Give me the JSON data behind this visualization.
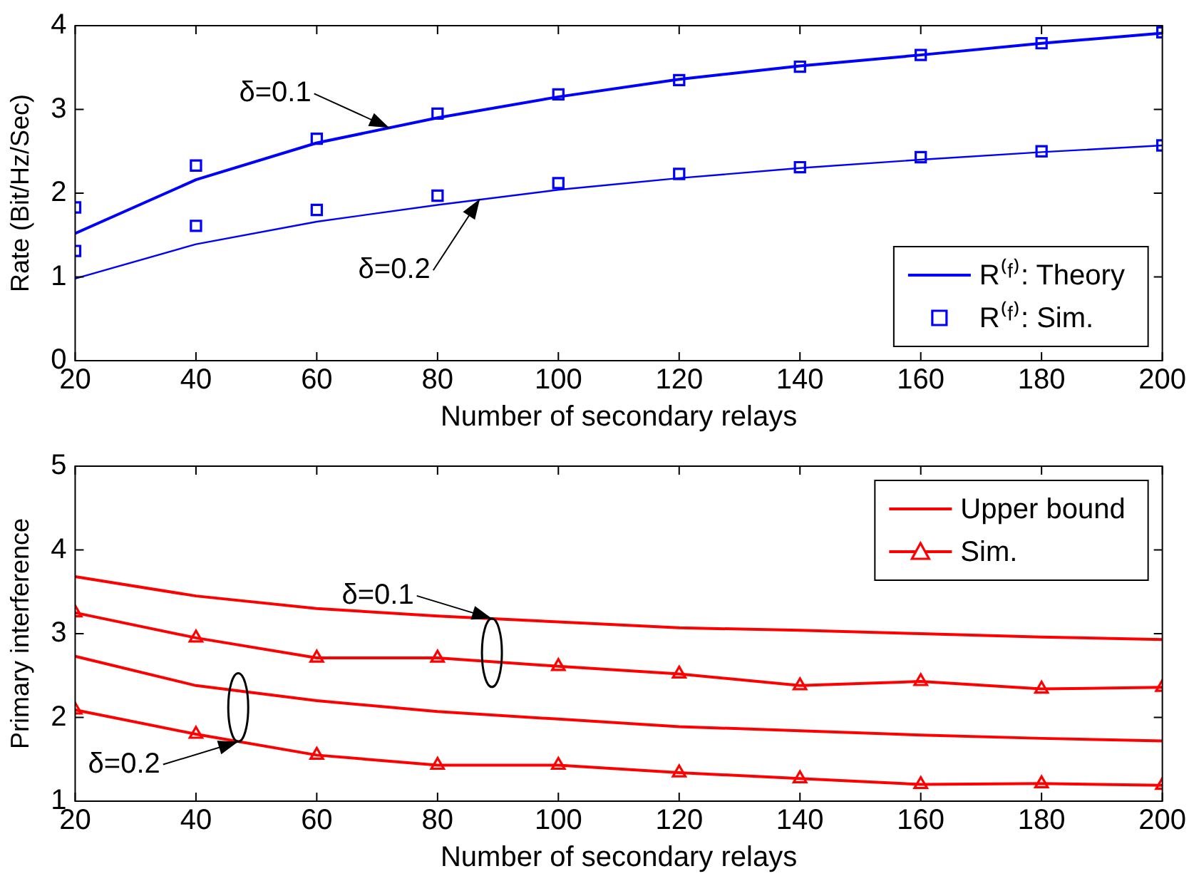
{
  "chart_data": [
    {
      "type": "line",
      "xlabel": "Number of secondary relays",
      "ylabel": "Rate (Bit/Hz/Sec)",
      "x": [
        20,
        40,
        60,
        80,
        100,
        120,
        140,
        160,
        180,
        200
      ],
      "xlim": [
        20,
        200
      ],
      "xticks": [
        20,
        40,
        60,
        80,
        100,
        120,
        140,
        160,
        180,
        200
      ],
      "ylim": [
        0,
        4
      ],
      "yticks": [
        0,
        1,
        2,
        3,
        4
      ],
      "grid": false,
      "legend": "bottom right",
      "series": [
        {
          "name": "R⁽ᶠ⁾: Theory",
          "type": "line",
          "color": "#0000ff",
          "marker": "none",
          "values": [
            1.52,
            2.16,
            2.6,
            2.9,
            3.15,
            3.36,
            3.52,
            3.65,
            3.79,
            3.91
          ]
        },
        {
          "name": "R⁽ᶠ⁾: Sim.",
          "type": "scatter",
          "color": "#0000ff",
          "marker": "square",
          "values": [
            1.83,
            2.33,
            2.65,
            2.95,
            3.18,
            3.35,
            3.51,
            3.65,
            3.79,
            3.92
          ]
        },
        {
          "type": "line",
          "color": "#0000ff",
          "marker": "none",
          "values": [
            0.98,
            1.39,
            1.66,
            1.86,
            2.04,
            2.18,
            2.3,
            2.4,
            2.49,
            2.57
          ]
        },
        {
          "type": "scatter",
          "color": "#0000ff",
          "marker": "square",
          "values": [
            1.31,
            1.61,
            1.8,
            1.97,
            2.12,
            2.23,
            2.31,
            2.43,
            2.5,
            2.57
          ]
        }
      ],
      "annotations": [
        {
          "text": "δ=0.1",
          "x": 72,
          "y": 2.78
        },
        {
          "text": "δ=0.2",
          "x": 87,
          "y": 1.93
        }
      ]
    },
    {
      "type": "line",
      "xlabel": "Number of secondary relays",
      "ylabel": "Primary interference",
      "x": [
        20,
        40,
        60,
        80,
        100,
        120,
        140,
        160,
        180,
        200
      ],
      "xlim": [
        20,
        200
      ],
      "xticks": [
        20,
        40,
        60,
        80,
        100,
        120,
        140,
        160,
        180,
        200
      ],
      "ylim": [
        1,
        5
      ],
      "yticks": [
        1,
        2,
        3,
        4,
        5
      ],
      "grid": false,
      "legend": "top right",
      "series": [
        {
          "name": "Upper bound",
          "type": "line",
          "color": "#ff0000",
          "marker": "none",
          "values": [
            3.68,
            3.45,
            3.3,
            3.21,
            3.14,
            3.07,
            3.04,
            3.0,
            2.96,
            2.93
          ]
        },
        {
          "name": "Sim.",
          "type": "line",
          "color": "#ff0000",
          "marker": "triangle",
          "values": [
            3.25,
            2.95,
            2.71,
            2.71,
            2.61,
            2.52,
            2.38,
            2.43,
            2.34,
            2.36
          ]
        },
        {
          "type": "line",
          "color": "#ff0000",
          "marker": "none",
          "values": [
            2.73,
            2.38,
            2.2,
            2.07,
            1.98,
            1.89,
            1.84,
            1.79,
            1.75,
            1.72
          ]
        },
        {
          "type": "line",
          "color": "#ff0000",
          "marker": "triangle",
          "values": [
            2.09,
            1.8,
            1.55,
            1.43,
            1.43,
            1.34,
            1.27,
            1.2,
            1.21,
            1.19
          ]
        }
      ],
      "annotations": [
        {
          "text": "δ=0.1",
          "x": 89,
          "y": 3.18
        },
        {
          "text": "δ=0.2",
          "x": 47,
          "y": 1.71
        }
      ]
    }
  ]
}
